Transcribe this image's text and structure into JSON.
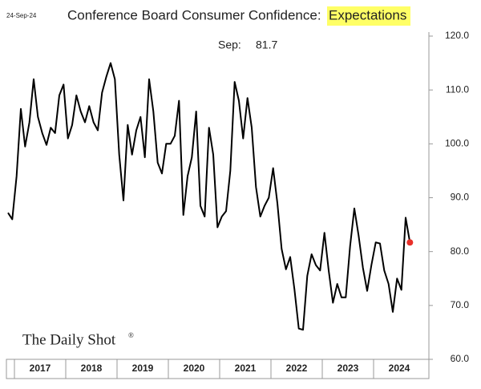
{
  "chart_data": {
    "type": "line",
    "date": "24-Sep-24",
    "title": "Conference Board Consumer Confidence:",
    "title_highlight": "Expectations",
    "annotation": "Sep:",
    "watermark": "The Daily Shot",
    "watermark_mark": "®",
    "categories": [
      null,
      null,
      "2017",
      null,
      null,
      null,
      null,
      null,
      null,
      null,
      null,
      null,
      null,
      null,
      "2018",
      null,
      null,
      null,
      null,
      null,
      null,
      null,
      null,
      null,
      null,
      null,
      "2019",
      null,
      null,
      null,
      null,
      null,
      null,
      null,
      null,
      null,
      null,
      null,
      "2020",
      null,
      null,
      null,
      null,
      null,
      null,
      null,
      null,
      null,
      null,
      null,
      "2021",
      null,
      null,
      null,
      null,
      null,
      null,
      null,
      null,
      null,
      null,
      null,
      "2022",
      null,
      null,
      null,
      null,
      null,
      null,
      null,
      null,
      null,
      null,
      null,
      "2023",
      null,
      null,
      null,
      null,
      null,
      null,
      null,
      null,
      null,
      null,
      null,
      "2024",
      null,
      null,
      null,
      null,
      null,
      null,
      null,
      null
    ],
    "series": [
      {
        "name": "Expectations",
        "color": "#000000",
        "last_color": "#e8302a",
        "values": [
          87.2,
          86,
          94,
          106.5,
          99.5,
          104,
          112,
          105,
          102,
          99.8,
          103,
          102,
          109,
          111,
          101,
          103.5,
          109,
          106,
          104,
          107,
          104,
          102.5,
          109.5,
          112.5,
          115,
          112,
          98,
          89.5,
          103.5,
          98,
          102.5,
          105,
          97.5,
          112,
          106,
          96.5,
          94.5,
          100,
          100,
          101.5,
          108,
          86.8,
          94,
          97.5,
          106,
          88.5,
          86.5,
          103,
          98,
          84.5,
          86.5,
          87.5,
          95,
          111.5,
          108,
          101,
          108.5,
          103,
          92,
          86.5,
          88.5,
          90,
          95.5,
          89,
          80.5,
          76.7,
          79,
          73,
          65.7,
          65.5,
          75.5,
          79.5,
          77.5,
          76.5,
          83.5,
          76.5,
          70.5,
          74,
          71.5,
          71.5,
          81,
          88,
          83,
          77,
          72.7,
          77.5,
          81.7,
          81.5,
          76.5,
          74,
          68.8,
          75,
          72.9,
          86.3,
          81.7
        ]
      }
    ],
    "ylim": [
      60,
      120
    ],
    "yticks": [
      {
        "value": 60,
        "label": "60.0"
      },
      {
        "value": 70,
        "label": "70.0"
      },
      {
        "value": 80,
        "label": "80.0"
      },
      {
        "value": 90,
        "label": "90.0"
      },
      {
        "value": 100,
        "label": "100.0"
      },
      {
        "value": 110,
        "label": "110.0"
      },
      {
        "value": 120,
        "label": "120.0"
      }
    ],
    "highlight_color": "#ffff66"
  }
}
